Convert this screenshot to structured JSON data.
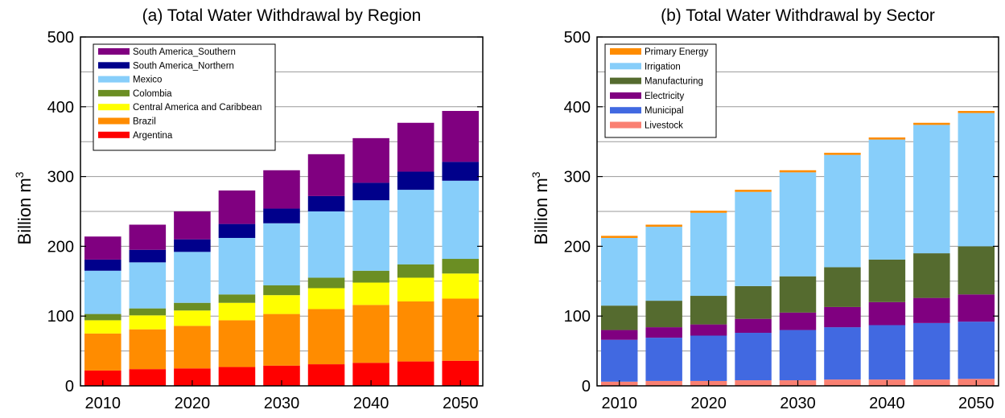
{
  "chart_data": [
    {
      "type": "bar",
      "stacked": true,
      "title": "(a) Total Water Withdrawal by Region",
      "ylabel_main": "Billion m",
      "ylabel_sup": "3",
      "ylim": [
        0,
        500
      ],
      "yticks": [
        "0",
        "100",
        "200",
        "300",
        "400",
        "500"
      ],
      "x": [
        2010,
        2015,
        2020,
        2025,
        2030,
        2035,
        2040,
        2045,
        2050
      ],
      "xticks": [
        "2010",
        "2020",
        "2030",
        "2040",
        "2050"
      ],
      "grid": true,
      "legend_position": "top-left",
      "series": [
        {
          "name": "Argentina",
          "color": "#ff0000",
          "values": [
            22,
            24,
            25,
            27,
            29,
            31,
            33,
            35,
            36
          ]
        },
        {
          "name": "Brazil",
          "color": "#ff8c00",
          "values": [
            53,
            57,
            61,
            67,
            74,
            79,
            83,
            86,
            89
          ]
        },
        {
          "name": "Central America and Caribbean",
          "color": "#ffff00",
          "values": [
            19,
            20,
            22,
            25,
            27,
            30,
            32,
            34,
            36
          ]
        },
        {
          "name": "Colombia",
          "color": "#6b8e23",
          "values": [
            9,
            10,
            11,
            12,
            14,
            15,
            17,
            19,
            21
          ]
        },
        {
          "name": "Mexico",
          "color": "#87cefa",
          "values": [
            62,
            66,
            73,
            81,
            89,
            95,
            101,
            107,
            112
          ]
        },
        {
          "name": "South America_Northern",
          "color": "#00008b",
          "values": [
            16,
            18,
            18,
            20,
            21,
            22,
            25,
            26,
            27
          ]
        },
        {
          "name": "South America_Southern",
          "color": "#800080",
          "values": [
            33,
            36,
            40,
            48,
            55,
            60,
            64,
            70,
            73
          ]
        }
      ]
    },
    {
      "type": "bar",
      "stacked": true,
      "title": "(b) Total Water Withdrawal by Sector",
      "ylabel_main": "Billion m",
      "ylabel_sup": "3",
      "ylim": [
        0,
        500
      ],
      "yticks": [
        "0",
        "100",
        "200",
        "300",
        "400",
        "500"
      ],
      "x": [
        2010,
        2015,
        2020,
        2025,
        2030,
        2035,
        2040,
        2045,
        2050
      ],
      "xticks": [
        "2010",
        "2020",
        "2030",
        "2040",
        "2050"
      ],
      "grid": true,
      "legend_position": "top-left",
      "series": [
        {
          "name": "Livestock",
          "color": "#fa8072",
          "values": [
            6,
            7,
            7,
            8,
            8,
            9,
            9,
            9,
            10
          ]
        },
        {
          "name": "Municipal",
          "color": "#4169e1",
          "values": [
            60,
            62,
            65,
            68,
            72,
            75,
            78,
            81,
            82
          ]
        },
        {
          "name": "Electricity",
          "color": "#800080",
          "values": [
            14,
            15,
            16,
            20,
            25,
            29,
            33,
            36,
            39
          ]
        },
        {
          "name": "Manufacturing",
          "color": "#556b2f",
          "values": [
            35,
            38,
            41,
            47,
            52,
            57,
            61,
            64,
            69
          ]
        },
        {
          "name": "Irrigation",
          "color": "#87cefa",
          "values": [
            97,
            106,
            119,
            135,
            149,
            161,
            172,
            184,
            191
          ]
        },
        {
          "name": "Primary Energy",
          "color": "#ff8c00",
          "values": [
            3,
            3,
            3,
            3,
            3,
            3,
            3,
            3,
            3
          ]
        }
      ]
    }
  ]
}
